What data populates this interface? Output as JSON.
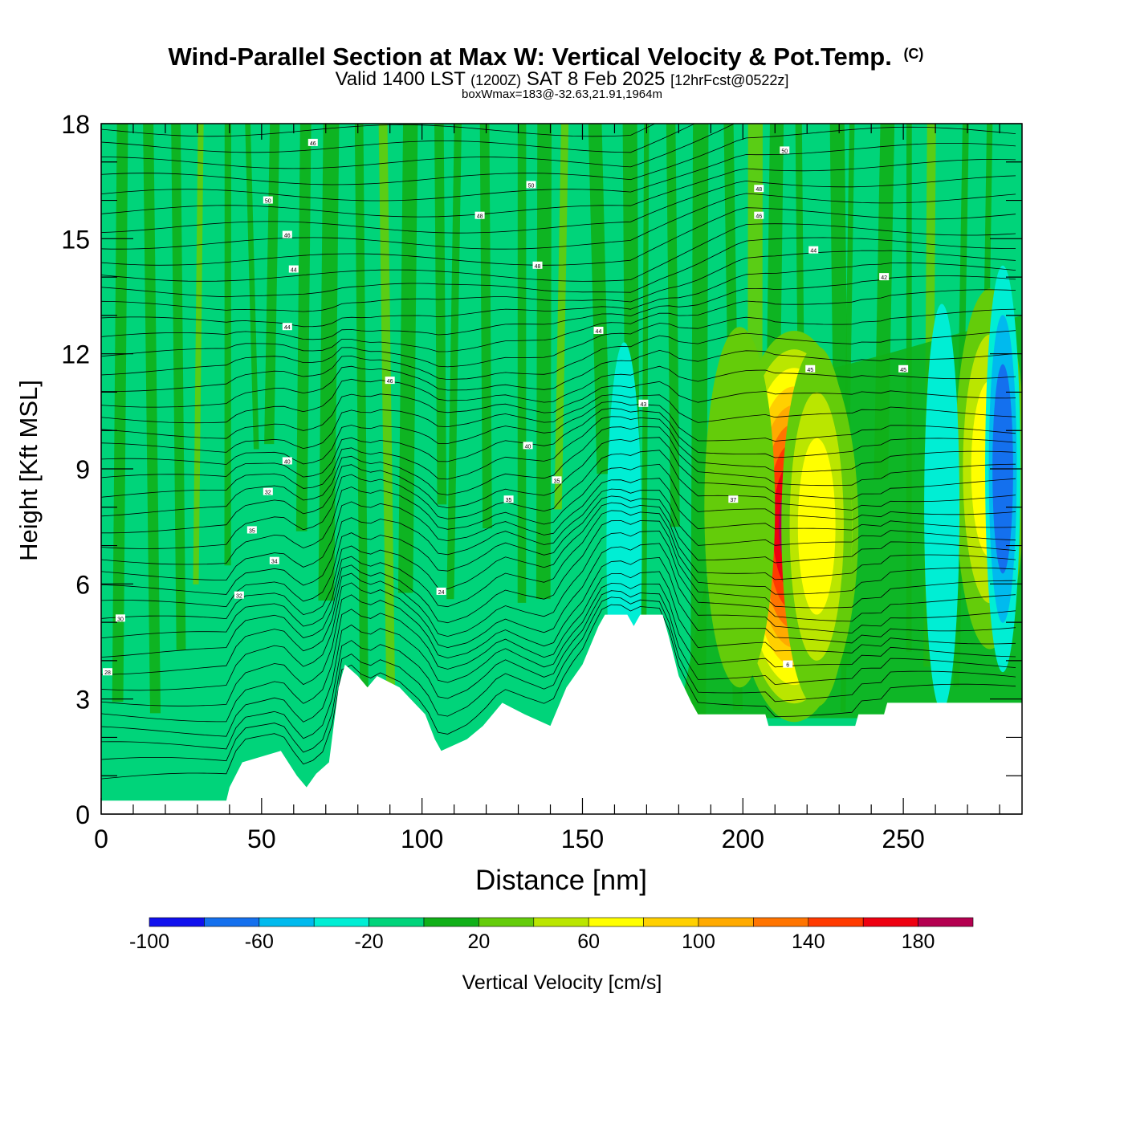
{
  "title": {
    "main": "Wind-Parallel Section at Max W: Vertical Velocity & Pot.Temp.",
    "copyright": "(C)",
    "valid_prefix": "Valid 1400 LST",
    "valid_utc": "(1200Z)",
    "valid_date": "SAT 8 Feb 2025",
    "forecast": "[12hrFcst@0522z]",
    "boxwmax": "boxWmax=183@-32.63,21.91,1964m"
  },
  "chart_data": {
    "type": "heatmap",
    "xlabel": "Distance [nm]",
    "ylabel": "Height [Kft MSL]",
    "xlim": [
      0,
      287
    ],
    "ylim": [
      0,
      18
    ],
    "x_ticks": [
      "0",
      "50",
      "100",
      "150",
      "200",
      "250"
    ],
    "y_ticks": [
      "0",
      "3",
      "6",
      "9",
      "12",
      "15",
      "18"
    ],
    "colorbar": {
      "label": "Vertical Velocity [cm/s]",
      "bounds": [
        -100,
        -80,
        -60,
        -40,
        -20,
        0,
        20,
        40,
        60,
        80,
        100,
        120,
        140,
        160,
        180,
        200
      ],
      "colors": [
        "#1010ee",
        "#1470ee",
        "#00baee",
        "#00eed4",
        "#00d47a",
        "#10b018",
        "#64cc0a",
        "#bae600",
        "#ffff00",
        "#ffd000",
        "#ffaa00",
        "#ff7400",
        "#ff3a00",
        "#ee0010",
        "#b40050"
      ],
      "tick_labels": [
        "-100",
        "-60",
        "-20",
        "20",
        "60",
        "100",
        "140",
        "180"
      ]
    },
    "terrain": [
      [
        0,
        0.35
      ],
      [
        39,
        0.35
      ],
      [
        40,
        0.7
      ],
      [
        44,
        1.35
      ],
      [
        56,
        1.65
      ],
      [
        61,
        1.0
      ],
      [
        64,
        0.7
      ],
      [
        67,
        1.05
      ],
      [
        71,
        1.35
      ],
      [
        74,
        3.3
      ],
      [
        76,
        3.9
      ],
      [
        80,
        3.6
      ],
      [
        83,
        3.3
      ],
      [
        86,
        3.6
      ],
      [
        93,
        3.3
      ],
      [
        101,
        2.6
      ],
      [
        104,
        1.95
      ],
      [
        106,
        1.65
      ],
      [
        114,
        1.95
      ],
      [
        119,
        2.3
      ],
      [
        125,
        2.9
      ],
      [
        132,
        2.6
      ],
      [
        140,
        2.3
      ],
      [
        145,
        3.3
      ],
      [
        150,
        3.9
      ],
      [
        155,
        4.9
      ],
      [
        157,
        5.2
      ],
      [
        164,
        5.2
      ],
      [
        166,
        4.9
      ],
      [
        168,
        5.2
      ],
      [
        175,
        5.2
      ],
      [
        177,
        4.6
      ],
      [
        180,
        3.6
      ],
      [
        184,
        2.9
      ],
      [
        186,
        2.6
      ],
      [
        207,
        2.6
      ],
      [
        208,
        2.3
      ],
      [
        235,
        2.3
      ],
      [
        236,
        2.6
      ],
      [
        244,
        2.6
      ],
      [
        245,
        2.9
      ],
      [
        287,
        2.9
      ]
    ],
    "updrafts": [
      {
        "x": 216,
        "y": 7.5,
        "value": 183
      },
      {
        "x": 223,
        "y": 7.5,
        "value": 70
      },
      {
        "x": 277,
        "y": 9,
        "value": 80
      },
      {
        "x": 199,
        "y": 8,
        "value": 25
      }
    ],
    "downdrafts": [
      {
        "x": 281,
        "y": 9,
        "value": -80
      },
      {
        "x": 262,
        "y": 8,
        "value": -40
      },
      {
        "x": 163,
        "y": 7,
        "value": -25
      }
    ],
    "theta_labels": [
      {
        "x": 2,
        "y": 3.7,
        "text": "28"
      },
      {
        "x": 6,
        "y": 5.1,
        "text": "30"
      },
      {
        "x": 43,
        "y": 5.7,
        "text": "32"
      },
      {
        "x": 54,
        "y": 6.6,
        "text": "34"
      },
      {
        "x": 47,
        "y": 7.4,
        "text": "35"
      },
      {
        "x": 52,
        "y": 8.4,
        "text": "32"
      },
      {
        "x": 58,
        "y": 9.2,
        "text": "40"
      },
      {
        "x": 106,
        "y": 5.8,
        "text": "24"
      },
      {
        "x": 127,
        "y": 8.2,
        "text": "35"
      },
      {
        "x": 142,
        "y": 8.7,
        "text": "35"
      },
      {
        "x": 133,
        "y": 9.6,
        "text": "40"
      },
      {
        "x": 90,
        "y": 11.3,
        "text": "46"
      },
      {
        "x": 169,
        "y": 10.7,
        "text": "43"
      },
      {
        "x": 197,
        "y": 8.2,
        "text": "37"
      },
      {
        "x": 214,
        "y": 3.9,
        "text": "6"
      },
      {
        "x": 221,
        "y": 11.6,
        "text": "45"
      },
      {
        "x": 250,
        "y": 11.6,
        "text": "45"
      },
      {
        "x": 58,
        "y": 12.7,
        "text": "44"
      },
      {
        "x": 60,
        "y": 14.2,
        "text": "44"
      },
      {
        "x": 58,
        "y": 15.1,
        "text": "46"
      },
      {
        "x": 52,
        "y": 16.0,
        "text": "50"
      },
      {
        "x": 66,
        "y": 17.5,
        "text": "46"
      },
      {
        "x": 118,
        "y": 15.6,
        "text": "48"
      },
      {
        "x": 134,
        "y": 16.4,
        "text": "50"
      },
      {
        "x": 136,
        "y": 14.3,
        "text": "48"
      },
      {
        "x": 155,
        "y": 12.6,
        "text": "44"
      },
      {
        "x": 205,
        "y": 16.3,
        "text": "48"
      },
      {
        "x": 205,
        "y": 15.6,
        "text": "46"
      },
      {
        "x": 213,
        "y": 17.3,
        "text": "50"
      },
      {
        "x": 222,
        "y": 14.7,
        "text": "44"
      },
      {
        "x": 244,
        "y": 14.0,
        "text": "42"
      }
    ]
  }
}
